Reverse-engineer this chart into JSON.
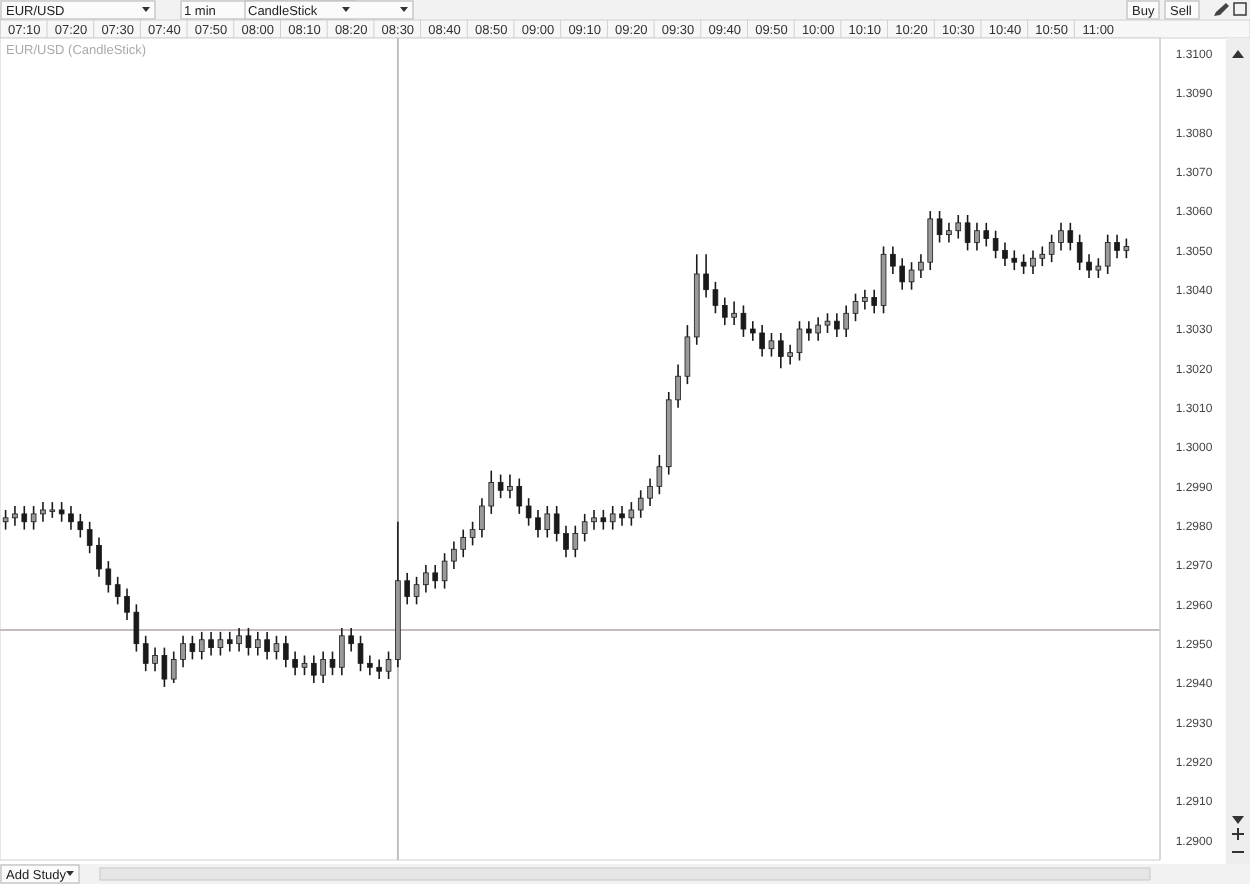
{
  "chart_data": {
    "type": "candlestick",
    "title": "EUR/USD (CandleStick)",
    "annotations": [
      "EUR/USD",
      "1 min",
      "CandleStick",
      "Buy",
      "Sell",
      "Add Study"
    ],
    "color": "#1a1a1a",
    "x": [
      7.1,
      7.1333,
      7.1667,
      7.2,
      7.2333,
      7.2667,
      7.3,
      7.3333,
      7.3667,
      7.4,
      7.4333,
      7.4667,
      7.5,
      7.5333,
      7.5667,
      7.6,
      7.6333,
      7.6667,
      7.7,
      7.7333,
      7.7667,
      7.8,
      7.8333,
      7.8667,
      7.9,
      7.9333,
      7.9667,
      8,
      8.0333,
      8.0667,
      8.1,
      8.1333,
      8.1667,
      8.2,
      8.2333,
      8.2667,
      8.3,
      8.3333,
      8.3667,
      8.4,
      8.4333,
      8.4667,
      8.5,
      8.5333,
      8.5667,
      8.6,
      8.6333,
      8.6667,
      8.7,
      8.7333,
      8.7667,
      8.8,
      8.8333,
      8.8667,
      8.9,
      8.9333,
      8.9667,
      9,
      9.0333,
      9.0667,
      9.1,
      9.1333,
      9.1667,
      9.2,
      9.2333,
      9.2667,
      9.3,
      9.3333,
      9.3667,
      9.4,
      9.4333,
      9.4667,
      9.5,
      9.5333,
      9.5667,
      9.6,
      9.6333,
      9.6667,
      9.7,
      9.7333,
      9.7667,
      9.8,
      9.8333,
      9.8667,
      9.9,
      9.9333,
      9.9667,
      10,
      10.0333,
      10.0667,
      10.1,
      10.1333,
      10.1667,
      10.2,
      10.2333,
      10.2667,
      10.3,
      10.3333,
      10.3667,
      10.4,
      10.4333,
      10.4667,
      10.5,
      10.5333,
      10.5667,
      10.6,
      10.6333,
      10.6667,
      10.7,
      10.7333,
      10.7667,
      10.8,
      10.8333,
      10.8667,
      10.9,
      10.9333,
      10.9667,
      11,
      11.0333,
      11.0667,
      11.1
    ],
    "ohlc": [
      [
        1.2981,
        1.2984,
        1.2979,
        1.2982
      ],
      [
        1.2982,
        1.2985,
        1.298,
        1.2983
      ],
      [
        1.2983,
        1.2985,
        1.2979,
        1.2981
      ],
      [
        1.2981,
        1.2985,
        1.2979,
        1.2983
      ],
      [
        1.2983,
        1.2986,
        1.2981,
        1.2984
      ],
      [
        1.2984,
        1.2986,
        1.2982,
        1.2984
      ],
      [
        1.2984,
        1.2986,
        1.2981,
        1.2983
      ],
      [
        1.2983,
        1.2985,
        1.2979,
        1.2981
      ],
      [
        1.2981,
        1.2983,
        1.2977,
        1.2979
      ],
      [
        1.2979,
        1.2981,
        1.2973,
        1.2975
      ],
      [
        1.2975,
        1.2977,
        1.2967,
        1.2969
      ],
      [
        1.2969,
        1.2971,
        1.2963,
        1.2965
      ],
      [
        1.2965,
        1.2967,
        1.296,
        1.2962
      ],
      [
        1.2962,
        1.2964,
        1.2956,
        1.2958
      ],
      [
        1.2958,
        1.296,
        1.2948,
        1.295
      ],
      [
        1.295,
        1.2952,
        1.2943,
        1.2945
      ],
      [
        1.2945,
        1.2949,
        1.2943,
        1.2947
      ],
      [
        1.2947,
        1.2949,
        1.2939,
        1.2941
      ],
      [
        1.2941,
        1.2948,
        1.294,
        1.2946
      ],
      [
        1.2946,
        1.2952,
        1.2944,
        1.295
      ],
      [
        1.295,
        1.2952,
        1.2946,
        1.2948
      ],
      [
        1.2948,
        1.2953,
        1.2946,
        1.2951
      ],
      [
        1.2951,
        1.2953,
        1.2947,
        1.2949
      ],
      [
        1.2949,
        1.2953,
        1.2947,
        1.2951
      ],
      [
        1.2951,
        1.2953,
        1.2948,
        1.295
      ],
      [
        1.295,
        1.2954,
        1.2948,
        1.2952
      ],
      [
        1.2952,
        1.2954,
        1.2947,
        1.2949
      ],
      [
        1.2949,
        1.2953,
        1.2947,
        1.2951
      ],
      [
        1.2951,
        1.2953,
        1.2946,
        1.2948
      ],
      [
        1.2948,
        1.2952,
        1.2946,
        1.295
      ],
      [
        1.295,
        1.2952,
        1.2944,
        1.2946
      ],
      [
        1.2946,
        1.2948,
        1.2942,
        1.2944
      ],
      [
        1.2944,
        1.2947,
        1.2942,
        1.2945
      ],
      [
        1.2945,
        1.2947,
        1.294,
        1.2942
      ],
      [
        1.2942,
        1.2948,
        1.294,
        1.2946
      ],
      [
        1.2946,
        1.2948,
        1.2942,
        1.2944
      ],
      [
        1.2944,
        1.2954,
        1.2942,
        1.2952
      ],
      [
        1.2952,
        1.2954,
        1.2948,
        1.295
      ],
      [
        1.295,
        1.2952,
        1.2943,
        1.2945
      ],
      [
        1.2945,
        1.2947,
        1.2942,
        1.2944
      ],
      [
        1.2944,
        1.2946,
        1.2941,
        1.2943
      ],
      [
        1.2943,
        1.2948,
        1.2941,
        1.2946
      ],
      [
        1.2946,
        1.2981,
        1.2944,
        1.2966
      ],
      [
        1.2966,
        1.2968,
        1.296,
        1.2962
      ],
      [
        1.2962,
        1.2967,
        1.296,
        1.2965
      ],
      [
        1.2965,
        1.297,
        1.2963,
        1.2968
      ],
      [
        1.2968,
        1.297,
        1.2964,
        1.2966
      ],
      [
        1.2966,
        1.2973,
        1.2964,
        1.2971
      ],
      [
        1.2971,
        1.2976,
        1.2969,
        1.2974
      ],
      [
        1.2974,
        1.2979,
        1.2972,
        1.2977
      ],
      [
        1.2977,
        1.2981,
        1.2975,
        1.2979
      ],
      [
        1.2979,
        1.2987,
        1.2977,
        1.2985
      ],
      [
        1.2985,
        1.2994,
        1.2983,
        1.2991
      ],
      [
        1.2991,
        1.2993,
        1.2987,
        1.2989
      ],
      [
        1.2989,
        1.2993,
        1.2987,
        1.299
      ],
      [
        1.299,
        1.2992,
        1.2983,
        1.2985
      ],
      [
        1.2985,
        1.2987,
        1.298,
        1.2982
      ],
      [
        1.2982,
        1.2984,
        1.2977,
        1.2979
      ],
      [
        1.2979,
        1.2985,
        1.2977,
        1.2983
      ],
      [
        1.2983,
        1.2985,
        1.2976,
        1.2978
      ],
      [
        1.2978,
        1.298,
        1.2972,
        1.2974
      ],
      [
        1.2974,
        1.298,
        1.2972,
        1.2978
      ],
      [
        1.2978,
        1.2983,
        1.2976,
        1.2981
      ],
      [
        1.2981,
        1.2984,
        1.2979,
        1.2982
      ],
      [
        1.2982,
        1.2984,
        1.2979,
        1.2981
      ],
      [
        1.2981,
        1.2985,
        1.2979,
        1.2983
      ],
      [
        1.2983,
        1.2985,
        1.298,
        1.2982
      ],
      [
        1.2982,
        1.2986,
        1.298,
        1.2984
      ],
      [
        1.2984,
        1.2989,
        1.2982,
        1.2987
      ],
      [
        1.2987,
        1.2992,
        1.2985,
        1.299
      ],
      [
        1.299,
        1.2998,
        1.2988,
        1.2995
      ],
      [
        1.2995,
        1.3014,
        1.2993,
        1.3012
      ],
      [
        1.3012,
        1.3021,
        1.301,
        1.3018
      ],
      [
        1.3018,
        1.3031,
        1.3016,
        1.3028
      ],
      [
        1.3028,
        1.3049,
        1.3026,
        1.3044
      ],
      [
        1.3044,
        1.3049,
        1.3038,
        1.304
      ],
      [
        1.304,
        1.3042,
        1.3034,
        1.3036
      ],
      [
        1.3036,
        1.3038,
        1.3031,
        1.3033
      ],
      [
        1.3033,
        1.3037,
        1.3031,
        1.3034
      ],
      [
        1.3034,
        1.3036,
        1.3028,
        1.303
      ],
      [
        1.303,
        1.3032,
        1.3027,
        1.3029
      ],
      [
        1.3029,
        1.3031,
        1.3023,
        1.3025
      ],
      [
        1.3025,
        1.3029,
        1.3023,
        1.3027
      ],
      [
        1.3027,
        1.3029,
        1.302,
        1.3023
      ],
      [
        1.3023,
        1.3026,
        1.3021,
        1.3024
      ],
      [
        1.3024,
        1.3032,
        1.3022,
        1.303
      ],
      [
        1.303,
        1.3032,
        1.3027,
        1.3029
      ],
      [
        1.3029,
        1.3033,
        1.3027,
        1.3031
      ],
      [
        1.3031,
        1.3034,
        1.3029,
        1.3032
      ],
      [
        1.3032,
        1.3034,
        1.3028,
        1.303
      ],
      [
        1.303,
        1.3036,
        1.3028,
        1.3034
      ],
      [
        1.3034,
        1.3039,
        1.3032,
        1.3037
      ],
      [
        1.3037,
        1.304,
        1.3035,
        1.3038
      ],
      [
        1.3038,
        1.304,
        1.3034,
        1.3036
      ],
      [
        1.3036,
        1.3051,
        1.3034,
        1.3049
      ],
      [
        1.3049,
        1.3051,
        1.3044,
        1.3046
      ],
      [
        1.3046,
        1.3048,
        1.304,
        1.3042
      ],
      [
        1.3042,
        1.3047,
        1.304,
        1.3045
      ],
      [
        1.3045,
        1.3049,
        1.3043,
        1.3047
      ],
      [
        1.3047,
        1.306,
        1.3045,
        1.3058
      ],
      [
        1.3058,
        1.306,
        1.3052,
        1.3054
      ],
      [
        1.3054,
        1.3057,
        1.3052,
        1.3055
      ],
      [
        1.3055,
        1.3059,
        1.3053,
        1.3057
      ],
      [
        1.3057,
        1.3059,
        1.305,
        1.3052
      ],
      [
        1.3052,
        1.3057,
        1.305,
        1.3055
      ],
      [
        1.3055,
        1.3057,
        1.3051,
        1.3053
      ],
      [
        1.3053,
        1.3055,
        1.3048,
        1.305
      ],
      [
        1.305,
        1.3052,
        1.3046,
        1.3048
      ],
      [
        1.3048,
        1.305,
        1.3045,
        1.3047
      ],
      [
        1.3047,
        1.3049,
        1.3044,
        1.3046
      ],
      [
        1.3046,
        1.305,
        1.3044,
        1.3048
      ],
      [
        1.3048,
        1.3051,
        1.3046,
        1.3049
      ],
      [
        1.3049,
        1.3054,
        1.3047,
        1.3052
      ],
      [
        1.3052,
        1.3057,
        1.305,
        1.3055
      ],
      [
        1.3055,
        1.3057,
        1.305,
        1.3052
      ],
      [
        1.3052,
        1.3054,
        1.3045,
        1.3047
      ],
      [
        1.3047,
        1.3049,
        1.3043,
        1.3045
      ],
      [
        1.3045,
        1.3048,
        1.3043,
        1.3046
      ],
      [
        1.3046,
        1.3054,
        1.3044,
        1.3052
      ],
      [
        1.3052,
        1.3054,
        1.3048,
        1.305
      ],
      [
        1.305,
        1.3053,
        1.3048,
        1.3051
      ]
    ],
    "xlim": [
      7.08,
      11.22
    ],
    "xticks": [
      {
        "value": 7.1667,
        "label": "07:10"
      },
      {
        "value": 7.3333,
        "label": "07:20"
      },
      {
        "value": 7.5,
        "label": "07:30"
      },
      {
        "value": 7.6667,
        "label": "07:40"
      },
      {
        "value": 7.8333,
        "label": "07:50"
      },
      {
        "value": 8,
        "label": "08:00"
      },
      {
        "value": 8.1667,
        "label": "08:10"
      },
      {
        "value": 8.3333,
        "label": "08:20"
      },
      {
        "value": 8.5,
        "label": "08:30"
      },
      {
        "value": 8.6667,
        "label": "08:40"
      },
      {
        "value": 8.8333,
        "label": "08:50"
      },
      {
        "value": 9,
        "label": "09:00"
      },
      {
        "value": 9.1667,
        "label": "09:10"
      },
      {
        "value": 9.3333,
        "label": "09:20"
      },
      {
        "value": 9.5,
        "label": "09:30"
      },
      {
        "value": 9.6667,
        "label": "09:40"
      },
      {
        "value": 9.8333,
        "label": "09:50"
      },
      {
        "value": 10,
        "label": "10:00"
      },
      {
        "value": 10.1667,
        "label": "10:10"
      },
      {
        "value": 10.3333,
        "label": "10:20"
      },
      {
        "value": 10.5,
        "label": "10:30"
      },
      {
        "value": 10.6667,
        "label": "10:40"
      },
      {
        "value": 10.8333,
        "label": "10:50"
      },
      {
        "value": 11,
        "label": "11:00"
      }
    ],
    "ylim": [
      1.2895,
      1.3104
    ],
    "yticks": [
      {
        "value": 1.29,
        "label": "1.2900"
      },
      {
        "value": 1.291,
        "label": "1.2910"
      },
      {
        "value": 1.292,
        "label": "1.2920"
      },
      {
        "value": 1.293,
        "label": "1.2930"
      },
      {
        "value": 1.294,
        "label": "1.2940"
      },
      {
        "value": 1.295,
        "label": "1.2950"
      },
      {
        "value": 1.296,
        "label": "1.2960"
      },
      {
        "value": 1.297,
        "label": "1.2970"
      },
      {
        "value": 1.298,
        "label": "1.2980"
      },
      {
        "value": 1.299,
        "label": "1.2990"
      },
      {
        "value": 1.3,
        "label": "1.3000"
      },
      {
        "value": 1.301,
        "label": "1.3010"
      },
      {
        "value": 1.302,
        "label": "1.3020"
      },
      {
        "value": 1.303,
        "label": "1.3030"
      },
      {
        "value": 1.304,
        "label": "1.3040"
      },
      {
        "value": 1.305,
        "label": "1.3050"
      },
      {
        "value": 1.306,
        "label": "1.3060"
      },
      {
        "value": 1.307,
        "label": "1.3070"
      },
      {
        "value": 1.308,
        "label": "1.3080"
      },
      {
        "value": 1.309,
        "label": "1.3090"
      },
      {
        "value": 1.31,
        "label": "1.3100"
      }
    ],
    "ref_lines": [
      {
        "axis": "x",
        "value": 8.5,
        "color": "#c4bcbc"
      },
      {
        "axis": "y",
        "value": 1.29535,
        "color": "#c4bcbc"
      }
    ]
  }
}
